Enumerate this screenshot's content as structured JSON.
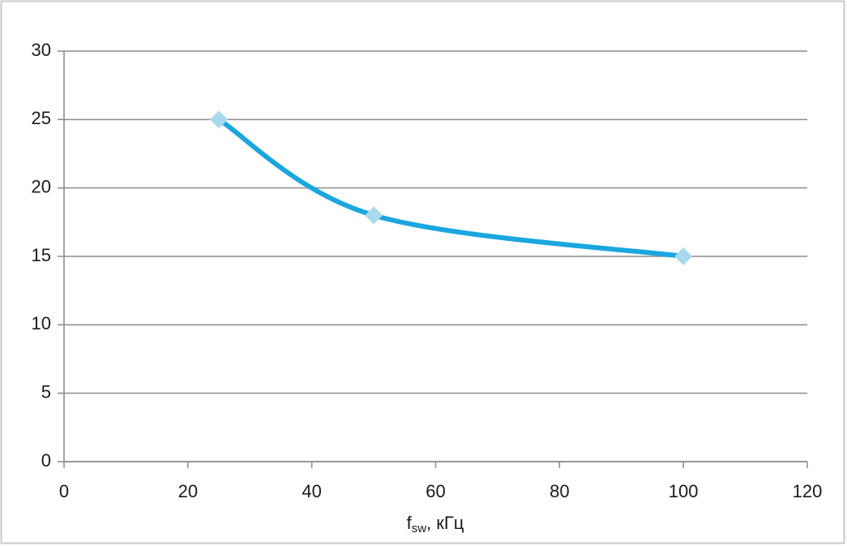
{
  "chart_data": {
    "type": "line",
    "smooth": true,
    "marker": "diamond",
    "x": [
      25,
      50,
      100
    ],
    "values": [
      25,
      18,
      15
    ],
    "color": "#1ba6de",
    "marker_color": "#a9d9ec",
    "xlabel": [
      "f",
      "sw",
      ", кГц"
    ],
    "xlim": [
      0,
      120
    ],
    "xticks": [
      0,
      20,
      40,
      60,
      80,
      100,
      120
    ],
    "ylim": [
      0,
      30
    ],
    "yticks": [
      0,
      5,
      10,
      15,
      20,
      25,
      30
    ],
    "grid": true
  }
}
